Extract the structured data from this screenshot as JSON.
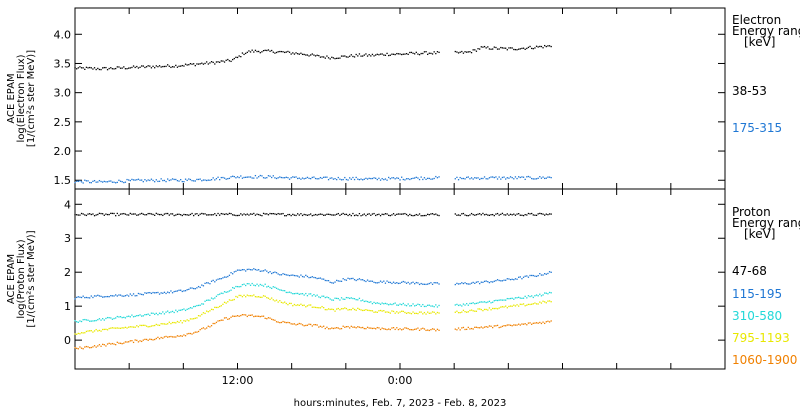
{
  "chart_data": [
    {
      "type": "scatter",
      "ylabel_lines": [
        "ACE EPAM",
        "log(Electron Flux)",
        "[1/(cm²s ster MeV)]"
      ],
      "ylim": [
        1.35,
        4.45
      ],
      "yticks": [
        1.5,
        2.0,
        2.5,
        3.0,
        3.5,
        4.0
      ],
      "ytick_labels": [
        "1.5",
        "2.0",
        "2.5",
        "3.0",
        "3.5",
        "4.0"
      ],
      "legend_title": [
        "Electron",
        "Energy ranges",
        "[keV]"
      ],
      "gaps": [
        [
          26.9,
          28.0
        ]
      ],
      "series": [
        {
          "name": "38-53",
          "color": "#000000",
          "x": [
            0,
            2,
            4,
            6,
            7.5,
            8.5,
            9.5,
            10.5,
            11.5,
            12,
            12.5,
            13,
            14,
            15,
            16,
            17,
            18,
            19,
            20,
            21,
            22,
            23,
            24,
            25,
            26,
            26.8,
            28,
            29,
            29.5,
            30,
            31,
            32,
            33,
            34,
            35.2
          ],
          "y": [
            3.42,
            3.41,
            3.43,
            3.45,
            3.46,
            3.48,
            3.5,
            3.52,
            3.55,
            3.6,
            3.68,
            3.71,
            3.71,
            3.7,
            3.68,
            3.66,
            3.62,
            3.6,
            3.62,
            3.64,
            3.64,
            3.66,
            3.66,
            3.67,
            3.68,
            3.68,
            3.68,
            3.69,
            3.72,
            3.77,
            3.76,
            3.75,
            3.76,
            3.78,
            3.8
          ]
        },
        {
          "name": "175-315",
          "color": "#1f77d4",
          "x": [
            0,
            2,
            4,
            6,
            8,
            10,
            12,
            14,
            16,
            18,
            20,
            22,
            24,
            26,
            26.8,
            28,
            30,
            32,
            34,
            35.2
          ],
          "y": [
            1.48,
            1.47,
            1.49,
            1.5,
            1.5,
            1.52,
            1.56,
            1.56,
            1.54,
            1.53,
            1.53,
            1.52,
            1.53,
            1.54,
            1.54,
            1.53,
            1.54,
            1.54,
            1.54,
            1.55
          ]
        }
      ]
    },
    {
      "type": "scatter",
      "ylabel_lines": [
        "ACE EPAM",
        "log(Proton Flux)",
        "[1/(cm²s ster MeV)]"
      ],
      "ylim": [
        -0.85,
        4.45
      ],
      "yticks": [
        0,
        1,
        2,
        3,
        4
      ],
      "ytick_labels": [
        "0",
        "1",
        "2",
        "3",
        "4"
      ],
      "legend_title": [
        "Proton",
        "Energy ranges",
        "[keV]"
      ],
      "gaps": [
        [
          26.9,
          28.0
        ]
      ],
      "series": [
        {
          "name": "47-68",
          "color": "#000000",
          "x": [
            0,
            4,
            8,
            12,
            16,
            20,
            24,
            26.8,
            28,
            32,
            35.2
          ],
          "y": [
            3.7,
            3.7,
            3.7,
            3.7,
            3.7,
            3.7,
            3.7,
            3.7,
            3.7,
            3.7,
            3.7
          ]
        },
        {
          "name": "115-195",
          "color": "#1f77d4",
          "x": [
            0,
            2,
            4,
            6,
            8,
            9,
            10,
            11,
            12,
            13,
            14,
            15,
            16,
            17,
            18,
            19,
            20,
            21,
            22,
            24,
            26,
            26.8,
            28,
            30,
            32,
            34,
            35.2
          ],
          "y": [
            1.25,
            1.3,
            1.33,
            1.38,
            1.45,
            1.55,
            1.7,
            1.85,
            2.05,
            2.08,
            2.05,
            1.95,
            1.9,
            1.88,
            1.82,
            1.7,
            1.8,
            1.78,
            1.72,
            1.7,
            1.66,
            1.66,
            1.65,
            1.7,
            1.78,
            1.9,
            2.0
          ]
        },
        {
          "name": "310-580",
          "color": "#22d8d8",
          "x": [
            0,
            2,
            4,
            6,
            8,
            9,
            10,
            11,
            12,
            13,
            14,
            15,
            16,
            17,
            18,
            19,
            20,
            21,
            22,
            24,
            26,
            26.8,
            28,
            30,
            32,
            34,
            35.2
          ],
          "y": [
            0.55,
            0.62,
            0.7,
            0.78,
            0.88,
            1.0,
            1.2,
            1.4,
            1.6,
            1.65,
            1.62,
            1.5,
            1.4,
            1.35,
            1.3,
            1.2,
            1.22,
            1.2,
            1.1,
            1.05,
            1.02,
            1.0,
            1.02,
            1.1,
            1.2,
            1.3,
            1.4
          ]
        },
        {
          "name": "795-1193",
          "color": "#e8e800",
          "x": [
            0,
            2,
            4,
            6,
            8,
            9,
            10,
            11,
            12,
            13,
            14,
            15,
            16,
            17,
            18,
            19,
            20,
            21,
            22,
            24,
            26,
            26.8,
            28,
            30,
            32,
            34,
            35.2
          ],
          "y": [
            0.2,
            0.3,
            0.38,
            0.45,
            0.55,
            0.68,
            0.88,
            1.08,
            1.28,
            1.32,
            1.28,
            1.15,
            1.05,
            1.02,
            0.98,
            0.88,
            0.92,
            0.9,
            0.85,
            0.82,
            0.8,
            0.8,
            0.82,
            0.9,
            0.98,
            1.08,
            1.15
          ]
        },
        {
          "name": "1060-1900",
          "color": "#f08000",
          "x": [
            0,
            2,
            4,
            6,
            8,
            9,
            10,
            11,
            12,
            13,
            14,
            15,
            16,
            17,
            18,
            19,
            20,
            21,
            22,
            24,
            26,
            26.8,
            28,
            30,
            32,
            34,
            35.2
          ],
          "y": [
            -0.25,
            -0.15,
            -0.05,
            0.05,
            0.15,
            0.25,
            0.42,
            0.62,
            0.72,
            0.72,
            0.68,
            0.55,
            0.48,
            0.45,
            0.42,
            0.32,
            0.4,
            0.38,
            0.35,
            0.33,
            0.32,
            0.3,
            0.32,
            0.38,
            0.42,
            0.5,
            0.55
          ]
        }
      ]
    }
  ],
  "x_axis": {
    "xlim": [
      0,
      48
    ],
    "major_ticks": [
      0,
      4,
      8,
      12,
      16,
      20,
      24,
      28,
      32,
      36,
      40,
      44,
      48
    ],
    "labeled_ticks": [
      {
        "x": 12,
        "label": "12:00"
      },
      {
        "x": 24,
        "label": "0:00"
      }
    ],
    "xlabel": "hours:minutes, Feb.  7, 2023 - Feb.  8, 2023"
  }
}
